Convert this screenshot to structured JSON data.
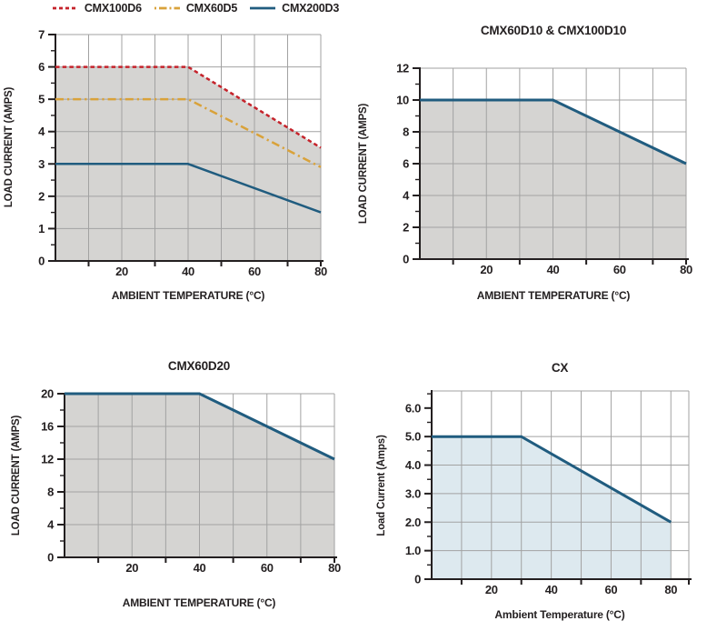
{
  "page": {
    "background": "#ffffff"
  },
  "colors": {
    "red": "#c5232b",
    "orange": "#d9a23a",
    "blue": "#205c7f",
    "gray_fill": "#d5d4d2",
    "blue_fill": "#dde9ef",
    "grid": "#a2a2a2",
    "axis": "#231f20",
    "text": "#231f20"
  },
  "chart_data": [
    {
      "id": "cmx100d6-cmx60d5-cmx200d3",
      "type": "line",
      "title": "",
      "xlabel": "AMBIENT TEMPERATURE (°C)",
      "ylabel": "LOAD CURRENT (AMPS)",
      "xlim": [
        0,
        80
      ],
      "ylim": [
        0,
        7
      ],
      "legend_position": "top",
      "legend": [
        {
          "label": "CMX100D6",
          "color": "red",
          "style": "dashed"
        },
        {
          "label": "CMX60D5",
          "color": "orange",
          "style": "dashdot"
        },
        {
          "label": "CMX200D3",
          "color": "blue",
          "style": "solid"
        }
      ],
      "x_tick_labels": [
        {
          "v": 20,
          "label": "20"
        },
        {
          "v": 40,
          "label": "40"
        },
        {
          "v": 60,
          "label": "60"
        },
        {
          "v": 80,
          "label": "80"
        }
      ],
      "x_minor_ticks": [
        10,
        30,
        50,
        70,
        80
      ],
      "y_tick_labels": [
        {
          "v": 0,
          "label": "0"
        },
        {
          "v": 1,
          "label": "1"
        },
        {
          "v": 2,
          "label": "2"
        },
        {
          "v": 3,
          "label": "3"
        },
        {
          "v": 4,
          "label": "4"
        },
        {
          "v": 5,
          "label": "5"
        },
        {
          "v": 6,
          "label": "6"
        },
        {
          "v": 7,
          "label": "7"
        }
      ],
      "y_minor_ticks": [
        0.5,
        1.5,
        2.5,
        3.5,
        4.5,
        5.5,
        6.5
      ],
      "grid_x": [
        10,
        20,
        30,
        40,
        50,
        60,
        70
      ],
      "grid_y": [
        1,
        2,
        3,
        4,
        5,
        6
      ],
      "fill": {
        "color": "gray_fill",
        "points": [
          [
            0,
            0
          ],
          [
            0,
            6
          ],
          [
            40,
            6
          ],
          [
            80,
            3.5
          ],
          [
            80,
            0
          ]
        ]
      },
      "series": [
        {
          "name": "CMX100D6",
          "color": "red",
          "style": "dashed",
          "points": [
            [
              0,
              6
            ],
            [
              40,
              6
            ],
            [
              80,
              3.5
            ]
          ]
        },
        {
          "name": "CMX60D5",
          "color": "orange",
          "style": "dashdot",
          "points": [
            [
              0,
              5
            ],
            [
              40,
              5
            ],
            [
              80,
              2.9
            ]
          ]
        },
        {
          "name": "CMX200D3",
          "color": "blue",
          "style": "solid",
          "points": [
            [
              0,
              3
            ],
            [
              40,
              3
            ],
            [
              80,
              1.5
            ]
          ]
        }
      ]
    },
    {
      "id": "cmx60d10-cmx100d10",
      "type": "line",
      "title": "CMX60D10 & CMX100D10",
      "xlabel": "AMBIENT TEMPERATURE (°C)",
      "ylabel": "LOAD CURRENT (AMPS)",
      "xlim": [
        0,
        80
      ],
      "ylim": [
        0,
        12
      ],
      "x_tick_labels": [
        {
          "v": 20,
          "label": "20"
        },
        {
          "v": 40,
          "label": "40"
        },
        {
          "v": 60,
          "label": "60"
        },
        {
          "v": 80,
          "label": "80"
        }
      ],
      "x_minor_ticks": [
        10,
        30,
        50,
        70,
        80
      ],
      "y_tick_labels": [
        {
          "v": 0,
          "label": "0"
        },
        {
          "v": 2,
          "label": "2"
        },
        {
          "v": 4,
          "label": "4"
        },
        {
          "v": 6,
          "label": "6"
        },
        {
          "v": 8,
          "label": "8"
        },
        {
          "v": 10,
          "label": "10"
        },
        {
          "v": 12,
          "label": "12"
        }
      ],
      "y_minor_ticks": [
        1,
        3,
        5,
        7,
        9,
        11
      ],
      "grid_x": [
        10,
        20,
        30,
        40,
        50,
        60,
        70
      ],
      "grid_y": [
        2,
        4,
        6,
        8,
        10
      ],
      "fill": {
        "color": "gray_fill",
        "points": [
          [
            0,
            0
          ],
          [
            0,
            10
          ],
          [
            40,
            10
          ],
          [
            80,
            6
          ],
          [
            80,
            0
          ]
        ]
      },
      "series": [
        {
          "name": "CMX60D10 & CMX100D10",
          "color": "blue",
          "style": "solid",
          "points": [
            [
              0,
              10
            ],
            [
              40,
              10
            ],
            [
              80,
              6
            ]
          ]
        }
      ]
    },
    {
      "id": "cmx60d20",
      "type": "line",
      "title": "CMX60D20",
      "xlabel": "AMBIENT TEMPERATURE (°C)",
      "ylabel": "LOAD CURRENT (AMPS)",
      "xlim": [
        0,
        80
      ],
      "ylim": [
        0,
        20
      ],
      "x_tick_labels": [
        {
          "v": 20,
          "label": "20"
        },
        {
          "v": 40,
          "label": "40"
        },
        {
          "v": 60,
          "label": "60"
        },
        {
          "v": 80,
          "label": "80"
        }
      ],
      "x_minor_ticks": [
        10,
        30,
        50,
        70,
        80
      ],
      "y_tick_labels": [
        {
          "v": 0,
          "label": "0"
        },
        {
          "v": 4,
          "label": "4"
        },
        {
          "v": 8,
          "label": "8"
        },
        {
          "v": 12,
          "label": "12"
        },
        {
          "v": 16,
          "label": "16"
        },
        {
          "v": 20,
          "label": "20"
        }
      ],
      "y_minor_ticks": [
        2,
        6,
        10,
        14,
        18
      ],
      "grid_x": [
        10,
        20,
        30,
        40,
        50,
        60,
        70
      ],
      "grid_y": [
        4,
        8,
        12,
        16
      ],
      "fill": {
        "color": "gray_fill",
        "points": [
          [
            0,
            0
          ],
          [
            0,
            20
          ],
          [
            40,
            20
          ],
          [
            80,
            12
          ],
          [
            80,
            0
          ]
        ]
      },
      "series": [
        {
          "name": "CMX60D20",
          "color": "blue",
          "style": "solid",
          "points": [
            [
              0,
              20
            ],
            [
              40,
              20
            ],
            [
              80,
              12
            ]
          ]
        }
      ]
    },
    {
      "id": "cx",
      "type": "line",
      "title": "CX",
      "xlabel": "Ambient Temperature (°C)",
      "ylabel": "Load Current (Amps)",
      "xlim": [
        0,
        86
      ],
      "ylim": [
        0,
        6.6
      ],
      "x_tick_labels": [
        {
          "v": 20,
          "label": "20"
        },
        {
          "v": 40,
          "label": "40"
        },
        {
          "v": 60,
          "label": "60"
        },
        {
          "v": 80,
          "label": "80"
        }
      ],
      "x_minor_ticks": [
        10,
        30,
        50,
        70,
        86
      ],
      "y_tick_labels": [
        {
          "v": 0,
          "label": "0"
        },
        {
          "v": 1,
          "label": "1.0"
        },
        {
          "v": 2,
          "label": "2.0"
        },
        {
          "v": 3,
          "label": "3.0"
        },
        {
          "v": 4,
          "label": "4.0"
        },
        {
          "v": 5,
          "label": "5.0"
        },
        {
          "v": 6,
          "label": "6.0"
        }
      ],
      "y_minor_ticks": [
        0.5,
        1.5,
        2.5,
        3.5,
        4.5,
        5.5,
        6.5
      ],
      "grid_x": [
        10,
        20,
        30,
        40,
        50,
        60,
        70,
        80
      ],
      "grid_y": [
        1,
        2,
        3,
        4,
        5
      ],
      "fill": {
        "color": "blue_fill",
        "points": [
          [
            0,
            0
          ],
          [
            0,
            5
          ],
          [
            30,
            5
          ],
          [
            80,
            2
          ],
          [
            80,
            0
          ]
        ]
      },
      "series": [
        {
          "name": "CX",
          "color": "blue",
          "style": "solid",
          "points": [
            [
              0,
              5
            ],
            [
              30,
              5
            ],
            [
              80,
              2
            ]
          ]
        }
      ]
    }
  ]
}
